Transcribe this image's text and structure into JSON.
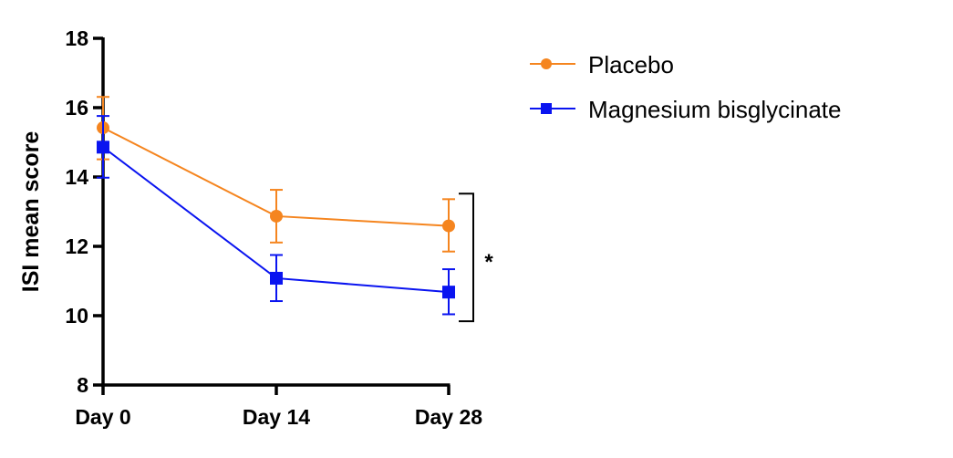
{
  "chart_data": {
    "type": "line",
    "title": "",
    "xlabel": "",
    "ylabel": "ISI mean score",
    "categories": [
      "Day 0",
      "Day 14",
      "Day 28"
    ],
    "ylim": [
      8,
      18
    ],
    "yticks": [
      8,
      10,
      12,
      14,
      16,
      18
    ],
    "grid": false,
    "legend_position": "top-right",
    "series": [
      {
        "name": "Placebo",
        "color": "#f5851f",
        "marker": "circle",
        "values": [
          15.42,
          12.87,
          12.59
        ],
        "error_upper": [
          16.31,
          13.63,
          13.36
        ],
        "error_lower": [
          14.51,
          12.11,
          11.85
        ]
      },
      {
        "name": "Magnesium bisglycinate",
        "color": "#0a14f0",
        "marker": "square",
        "values": [
          14.86,
          11.08,
          10.68
        ],
        "error_upper": [
          15.76,
          11.75,
          11.34
        ],
        "error_lower": [
          13.98,
          10.42,
          10.04
        ]
      }
    ],
    "annotations": [
      {
        "text": "*",
        "type": "significance-bracket",
        "category": "Day 28",
        "range": [
          9.84,
          13.52
        ]
      }
    ]
  }
}
